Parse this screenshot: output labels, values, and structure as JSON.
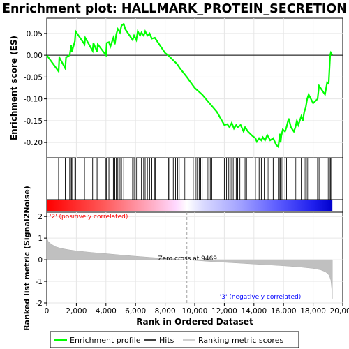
{
  "chart_data": {
    "type": "line",
    "title": "Enrichment plot: HALLMARK_PROTEIN_SECRETION",
    "xlabel": "Rank in Ordered Dataset",
    "ylabel_top": "Enrichment score (ES)",
    "ylabel_bottom": "Ranked list metric (Signal2Noise)",
    "x_ticks": [
      "0",
      "2,000",
      "4,000",
      "6,000",
      "8,000",
      "10,000",
      "12,000",
      "14,000",
      "16,000",
      "18,000",
      "20,000"
    ],
    "x_tick_values": [
      0,
      2000,
      4000,
      6000,
      8000,
      10000,
      12000,
      14000,
      16000,
      18000,
      20000
    ],
    "es_y_ticks": [
      "0.05",
      "0.00",
      "-0.05",
      "-0.10",
      "-0.15",
      "-0.20"
    ],
    "es_y_tick_values": [
      0.05,
      0.0,
      -0.05,
      -0.1,
      -0.15,
      -0.2
    ],
    "metric_y_ticks": [
      "2",
      "1",
      "0",
      "-1",
      "-2"
    ],
    "metric_y_tick_values": [
      2,
      1,
      0,
      -1,
      -2
    ],
    "xlim": [
      0,
      20000
    ],
    "es_ylim": [
      -0.235,
      0.085
    ],
    "metric_ylim": [
      -2,
      2.2
    ],
    "n_genes": 19300,
    "zero_cross": 9469,
    "zero_cross_label": "Zero cross at 9469",
    "pos_label": "'2' (positively correlated)",
    "neg_label": "'3' (negatively correlated)",
    "colors": {
      "es_line": "#00ff00",
      "pos_label": "#ff0000",
      "neg_label": "#0000ff"
    },
    "series": [
      {
        "name": "Enrichment profile",
        "x": [
          0,
          800,
          850,
          1250,
          1300,
          1550,
          1650,
          1700,
          1900,
          1950,
          2550,
          2600,
          3100,
          3150,
          3400,
          3450,
          4000,
          4050,
          4200,
          4300,
          4500,
          4600,
          4700,
          4800,
          4950,
          5050,
          5200,
          5300,
          5800,
          5900,
          6050,
          6150,
          6300,
          6400,
          6550,
          6650,
          6800,
          6950,
          7100,
          7300,
          7500,
          8000,
          8200,
          8500,
          8800,
          9000,
          9469,
          10000,
          10500,
          11000,
          11500,
          12000,
          12200,
          12350,
          12500,
          12650,
          12800,
          12900,
          13100,
          13300,
          13400,
          13600,
          13900,
          14100,
          14200,
          14350,
          14500,
          14600,
          14750,
          14900,
          15100,
          15300,
          15500,
          15650,
          15750,
          15800,
          15850,
          15950,
          16100,
          16200,
          16350,
          16500,
          16700,
          16800,
          16900,
          17000,
          17100,
          17200,
          17300,
          17400,
          17500,
          17600,
          17700,
          18000,
          18300,
          18400,
          18600,
          18800,
          18950,
          19050,
          19150,
          19200,
          19300
        ],
        "es": [
          0.0,
          -0.037,
          -0.005,
          -0.03,
          -0.005,
          0.0,
          0.023,
          0.008,
          0.032,
          0.055,
          0.025,
          0.04,
          0.01,
          0.028,
          0.008,
          0.025,
          0.0,
          0.028,
          0.03,
          0.02,
          0.04,
          0.025,
          0.048,
          0.06,
          0.052,
          0.068,
          0.072,
          0.06,
          0.035,
          0.045,
          0.035,
          0.055,
          0.045,
          0.052,
          0.045,
          0.055,
          0.045,
          0.05,
          0.038,
          0.04,
          0.03,
          0.005,
          0.0,
          -0.01,
          -0.02,
          -0.03,
          -0.05,
          -0.075,
          -0.09,
          -0.11,
          -0.13,
          -0.16,
          -0.158,
          -0.165,
          -0.155,
          -0.168,
          -0.16,
          -0.165,
          -0.16,
          -0.175,
          -0.165,
          -0.175,
          -0.185,
          -0.19,
          -0.198,
          -0.19,
          -0.195,
          -0.188,
          -0.195,
          -0.183,
          -0.195,
          -0.19,
          -0.205,
          -0.21,
          -0.18,
          -0.2,
          -0.185,
          -0.17,
          -0.175,
          -0.165,
          -0.145,
          -0.165,
          -0.175,
          -0.165,
          -0.15,
          -0.16,
          -0.15,
          -0.14,
          -0.15,
          -0.13,
          -0.12,
          -0.1,
          -0.09,
          -0.11,
          -0.1,
          -0.07,
          -0.08,
          -0.09,
          -0.062,
          -0.065,
          0.0,
          0.006,
          0.0
        ]
      },
      {
        "name": "Hits"
      },
      {
        "name": "Ranking metric scores"
      }
    ],
    "legend_position": "bottom",
    "hits": [
      800,
      1250,
      1550,
      1650,
      1700,
      1900,
      1950,
      2550,
      3100,
      3400,
      4000,
      4050,
      4200,
      4500,
      4600,
      4700,
      4800,
      4950,
      5050,
      5200,
      5800,
      5900,
      6050,
      6150,
      6300,
      6400,
      6550,
      6650,
      6800,
      6950,
      7100,
      7300,
      7350,
      8200,
      8250,
      8550,
      8700,
      8850,
      8950,
      9300,
      9400,
      9900,
      10050,
      10150,
      10300,
      10400,
      10500,
      10850,
      10950,
      11050,
      11150,
      11300,
      12000,
      12150,
      12300,
      12400,
      12500,
      12600,
      12800,
      12900,
      13050,
      13400,
      13500,
      14100,
      14350,
      14500,
      14700,
      14900,
      15000,
      15300,
      15650,
      15750,
      15800,
      15850,
      15950,
      16100,
      16200,
      16800,
      16900,
      17200,
      17400,
      17500,
      17600,
      17700,
      18300,
      18400,
      18950,
      19050,
      19150,
      19200
    ],
    "metric_profile": {
      "x": [
        0,
        100,
        300,
        600,
        1000,
        1500,
        2000,
        3000,
        4000,
        5000,
        6000,
        7000,
        8000,
        9000,
        9469,
        10000,
        11000,
        12000,
        13000,
        14000,
        15000,
        16000,
        17000,
        18000,
        18500,
        18800,
        19000,
        19100,
        19200,
        19250,
        19300
      ],
      "y": [
        1.0,
        0.85,
        0.72,
        0.6,
        0.52,
        0.46,
        0.41,
        0.34,
        0.28,
        0.22,
        0.16,
        0.11,
        0.06,
        0.02,
        0.0,
        -0.03,
        -0.08,
        -0.12,
        -0.16,
        -0.2,
        -0.24,
        -0.28,
        -0.33,
        -0.4,
        -0.47,
        -0.55,
        -0.65,
        -0.75,
        -0.95,
        -1.3,
        -1.8
      ]
    },
    "legend": [
      "Enrichment profile",
      "Hits",
      "Ranking metric scores"
    ]
  }
}
